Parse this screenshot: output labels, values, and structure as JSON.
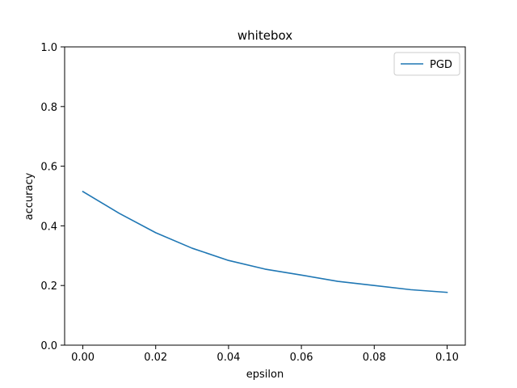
{
  "chart_data": {
    "type": "line",
    "title": "whitebox",
    "xlabel": "epsilon",
    "ylabel": "accuracy",
    "xlim": [
      -0.005,
      0.105
    ],
    "ylim": [
      0.0,
      1.0
    ],
    "xticks": [
      0.0,
      0.02,
      0.04,
      0.06,
      0.08,
      0.1
    ],
    "xtick_labels": [
      "0.00",
      "0.02",
      "0.04",
      "0.06",
      "0.08",
      "0.10"
    ],
    "yticks": [
      0.0,
      0.2,
      0.4,
      0.6,
      0.8,
      1.0
    ],
    "ytick_labels": [
      "0.0",
      "0.2",
      "0.4",
      "0.6",
      "0.8",
      "1.0"
    ],
    "grid": false,
    "legend_position": "top-right",
    "x": [
      0.0,
      0.01,
      0.02,
      0.03,
      0.04,
      0.05,
      0.06,
      0.07,
      0.08,
      0.09,
      0.1
    ],
    "series": [
      {
        "name": "PGD",
        "color": "#1f77b4",
        "values": [
          0.515,
          0.442,
          0.377,
          0.325,
          0.284,
          0.255,
          0.235,
          0.214,
          0.2,
          0.186,
          0.177
        ]
      }
    ]
  }
}
